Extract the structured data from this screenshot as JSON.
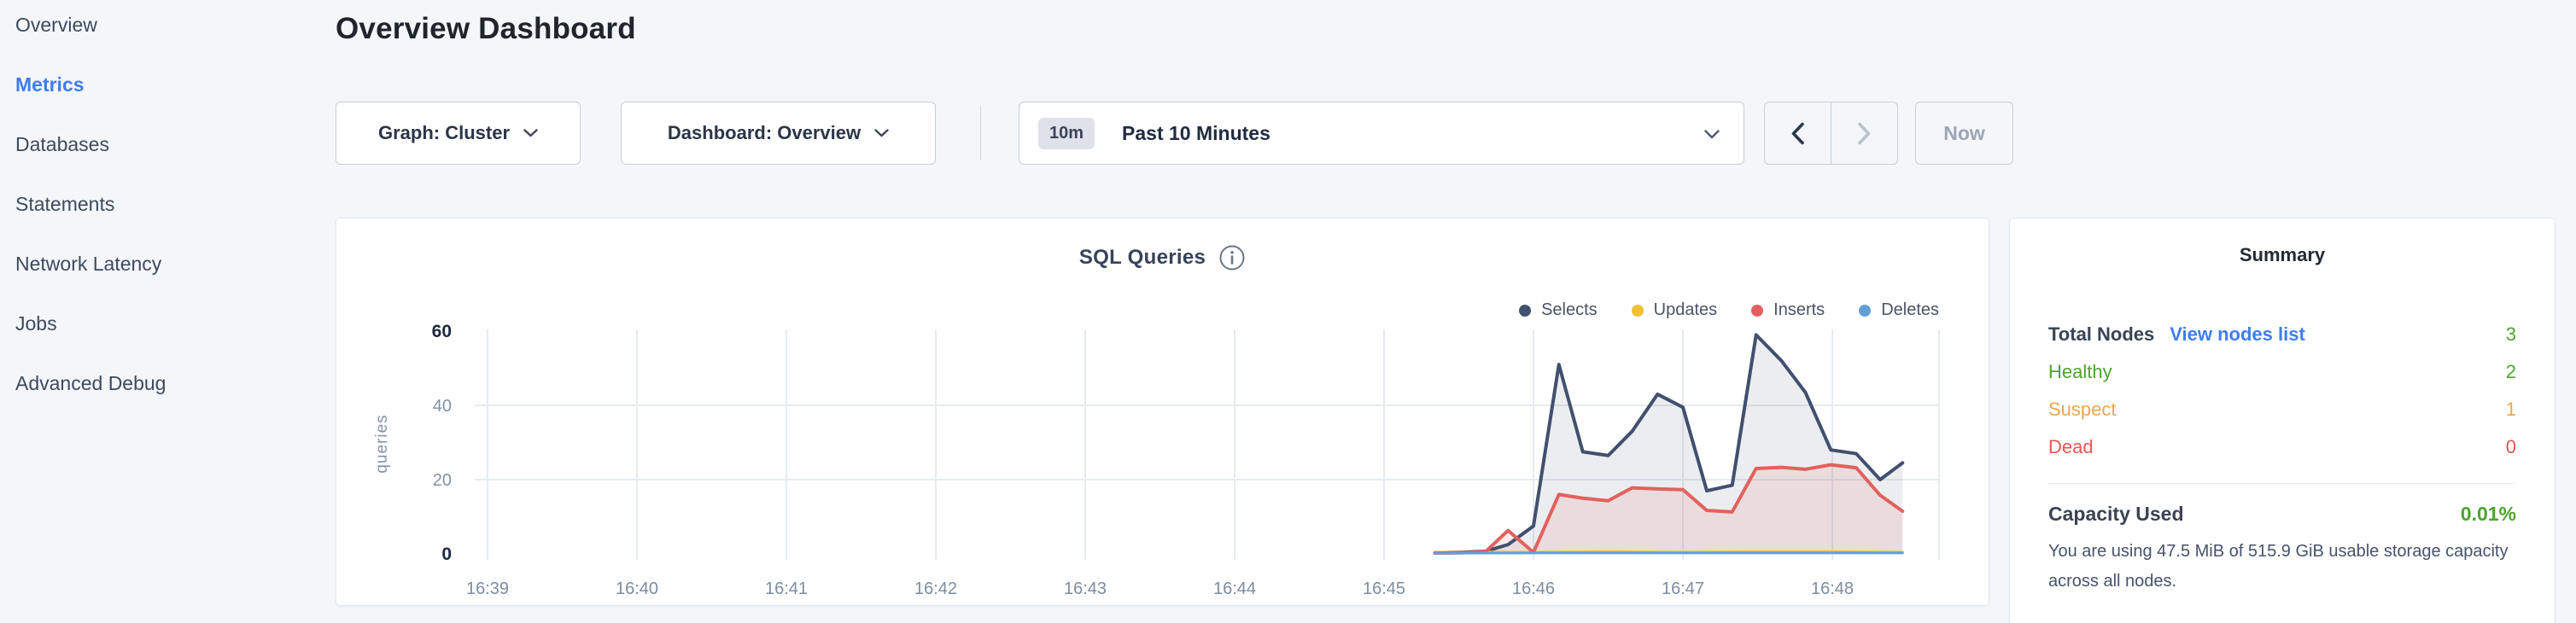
{
  "sidebar": {
    "items": [
      {
        "label": "Overview",
        "active": false
      },
      {
        "label": "Metrics",
        "active": true
      },
      {
        "label": "Databases",
        "active": false
      },
      {
        "label": "Statements",
        "active": false
      },
      {
        "label": "Network Latency",
        "active": false
      },
      {
        "label": "Jobs",
        "active": false
      },
      {
        "label": "Advanced Debug",
        "active": false
      }
    ]
  },
  "header": {
    "title": "Overview Dashboard"
  },
  "toolbar": {
    "graph_dropdown": "Graph: Cluster",
    "dashboard_dropdown": "Dashboard: Overview",
    "time_badge": "10m",
    "time_label": "Past 10 Minutes",
    "now_label": "Now"
  },
  "chart_data": {
    "type": "area",
    "title": "SQL Queries",
    "ylabel": "queries",
    "x_ticks": [
      "16:39",
      "16:40",
      "16:41",
      "16:42",
      "16:43",
      "16:44",
      "16:45",
      "16:46",
      "16:47",
      "16:48"
    ],
    "y_ticks": [
      0,
      20,
      40,
      60
    ],
    "y_grid": [
      20,
      40
    ],
    "ylim": [
      0,
      60
    ],
    "legend_position": "top-right",
    "x_unit_minutes_from": "16:39",
    "series": [
      {
        "name": "Selects",
        "color": "#41506e",
        "width": 4,
        "fill": "#41506e",
        "fill_opacity": 0.1,
        "points": [
          [
            6.34,
            0.3
          ],
          [
            6.52,
            0.45
          ],
          [
            6.68,
            0.7
          ],
          [
            6.83,
            2.5
          ],
          [
            7.0,
            7.5
          ],
          [
            7.17,
            51
          ],
          [
            7.33,
            27.5
          ],
          [
            7.5,
            26.5
          ],
          [
            7.66,
            33
          ],
          [
            7.83,
            43
          ],
          [
            8.0,
            39.5
          ],
          [
            8.16,
            17
          ],
          [
            8.33,
            18.5
          ],
          [
            8.49,
            59
          ],
          [
            8.66,
            52
          ],
          [
            8.82,
            43.5
          ],
          [
            8.99,
            28
          ],
          [
            9.16,
            27
          ],
          [
            9.32,
            20
          ],
          [
            9.47,
            24.5
          ]
        ]
      },
      {
        "name": "Updates",
        "color": "#f2c032",
        "width": 3,
        "fill": null,
        "fill_opacity": 0,
        "points": [
          [
            6.34,
            0.5
          ],
          [
            7.0,
            0.5
          ],
          [
            7.5,
            0.6
          ],
          [
            8.0,
            0.5
          ],
          [
            8.5,
            0.6
          ],
          [
            9.0,
            0.6
          ],
          [
            9.47,
            0.5
          ]
        ]
      },
      {
        "name": "Inserts",
        "color": "#e2615e",
        "width": 4,
        "fill": "#e2615e",
        "fill_opacity": 0.12,
        "points": [
          [
            6.34,
            0.2
          ],
          [
            6.52,
            0.3
          ],
          [
            6.68,
            0.6
          ],
          [
            6.83,
            6.3
          ],
          [
            7.0,
            0.4
          ],
          [
            7.17,
            16
          ],
          [
            7.33,
            15
          ],
          [
            7.5,
            14.3
          ],
          [
            7.66,
            17.8
          ],
          [
            7.83,
            17.5
          ],
          [
            8.0,
            17.3
          ],
          [
            8.16,
            11.7
          ],
          [
            8.33,
            11.3
          ],
          [
            8.49,
            23
          ],
          [
            8.66,
            23.3
          ],
          [
            8.82,
            22.8
          ],
          [
            8.99,
            24
          ],
          [
            9.16,
            23.2
          ],
          [
            9.32,
            15.8
          ],
          [
            9.47,
            11.5
          ]
        ]
      },
      {
        "name": "Deletes",
        "color": "#61a0d7",
        "width": 3,
        "fill": null,
        "fill_opacity": 0,
        "points": [
          [
            6.34,
            0.2
          ],
          [
            7.0,
            0.25
          ],
          [
            7.5,
            0.25
          ],
          [
            8.0,
            0.25
          ],
          [
            8.5,
            0.25
          ],
          [
            9.0,
            0.25
          ],
          [
            9.47,
            0.25
          ]
        ]
      }
    ]
  },
  "summary": {
    "title": "Summary",
    "rows": [
      {
        "label": "Total Nodes",
        "link": "View nodes list",
        "value": "3",
        "label_color": "#394455",
        "value_color": "#4da32f"
      },
      {
        "label": "Healthy",
        "link": null,
        "value": "2",
        "label_color": "#4da32f",
        "value_color": "#4da32f"
      },
      {
        "label": "Suspect",
        "link": null,
        "value": "1",
        "label_color": "#f0a64c",
        "value_color": "#f0a64c"
      },
      {
        "label": "Dead",
        "link": null,
        "value": "0",
        "label_color": "#e85454",
        "value_color": "#e85454"
      }
    ],
    "capacity": {
      "label": "Capacity Used",
      "value": "0.01%",
      "value_color": "#4da32f"
    },
    "capacity_note": "You are using 47.5 MiB of 515.9 GiB usable storage capacity across all nodes."
  },
  "colors": {
    "accent_blue": "#3e7df0",
    "green": "#4da32f",
    "orange": "#f0a64c",
    "red": "#e85454",
    "page_bg": "#f4f6fa"
  }
}
